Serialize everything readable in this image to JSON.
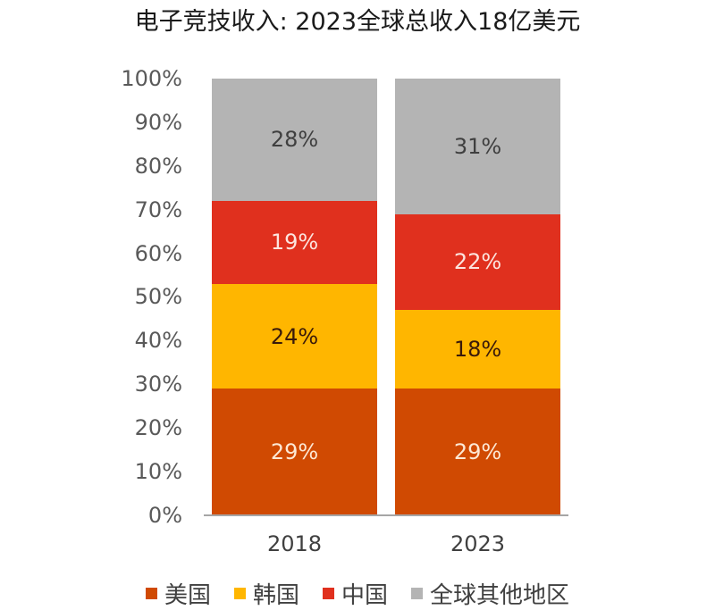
{
  "title": "电子竞技收入: 2023全球总收入18亿美元",
  "y_axis": {
    "ticks": [
      "0%",
      "10%",
      "20%",
      "30%",
      "40%",
      "50%",
      "60%",
      "70%",
      "80%",
      "90%",
      "100%"
    ]
  },
  "legend": [
    {
      "label": "美国",
      "color": "#D04A02"
    },
    {
      "label": "韩国",
      "color": "#FFB600"
    },
    {
      "label": "中国",
      "color": "#E0301E"
    },
    {
      "label": "全球其他地区",
      "color": "#B4B4B4"
    }
  ],
  "bars": [
    {
      "label": "2018",
      "segments": [
        {
          "series": "美国",
          "value": 29,
          "text": "29%",
          "color": "#D04A02",
          "text_color": "#FDE8D4"
        },
        {
          "series": "韩国",
          "value": 24,
          "text": "24%",
          "color": "#FFB600",
          "text_color": "#3A1A0A"
        },
        {
          "series": "中国",
          "value": 19,
          "text": "19%",
          "color": "#E0301E",
          "text_color": "#FCE4DE"
        },
        {
          "series": "全球其他地区",
          "value": 28,
          "text": "28%",
          "color": "#B4B4B4",
          "text_color": "#3F3F3F"
        }
      ]
    },
    {
      "label": "2023",
      "segments": [
        {
          "series": "美国",
          "value": 29,
          "text": "29%",
          "color": "#D04A02",
          "text_color": "#FDE8D4"
        },
        {
          "series": "韩国",
          "value": 18,
          "text": "18%",
          "color": "#FFB600",
          "text_color": "#3A1A0A"
        },
        {
          "series": "中国",
          "value": 22,
          "text": "22%",
          "color": "#E0301E",
          "text_color": "#FCE4DE"
        },
        {
          "series": "全球其他地区",
          "value": 31,
          "text": "31%",
          "color": "#B4B4B4",
          "text_color": "#3F3F3F"
        }
      ]
    }
  ],
  "chart_data": {
    "type": "bar",
    "stacked": true,
    "normalized": true,
    "title": "电子竞技收入: 2023全球总收入18亿美元",
    "categories": [
      "2018",
      "2023"
    ],
    "series": [
      {
        "name": "美国",
        "values": [
          29,
          29
        ],
        "color": "#D04A02"
      },
      {
        "name": "韩国",
        "values": [
          24,
          18
        ],
        "color": "#FFB600"
      },
      {
        "name": "中国",
        "values": [
          19,
          22
        ],
        "color": "#E0301E"
      },
      {
        "name": "全球其他地区",
        "values": [
          28,
          31
        ],
        "color": "#B4B4B4"
      }
    ],
    "xlabel": "",
    "ylabel": "",
    "ylim": [
      0,
      100
    ],
    "yticks": [
      "0%",
      "10%",
      "20%",
      "30%",
      "40%",
      "50%",
      "60%",
      "70%",
      "80%",
      "90%",
      "100%"
    ],
    "grid": false,
    "legend_position": "bottom",
    "data_labels": true
  }
}
